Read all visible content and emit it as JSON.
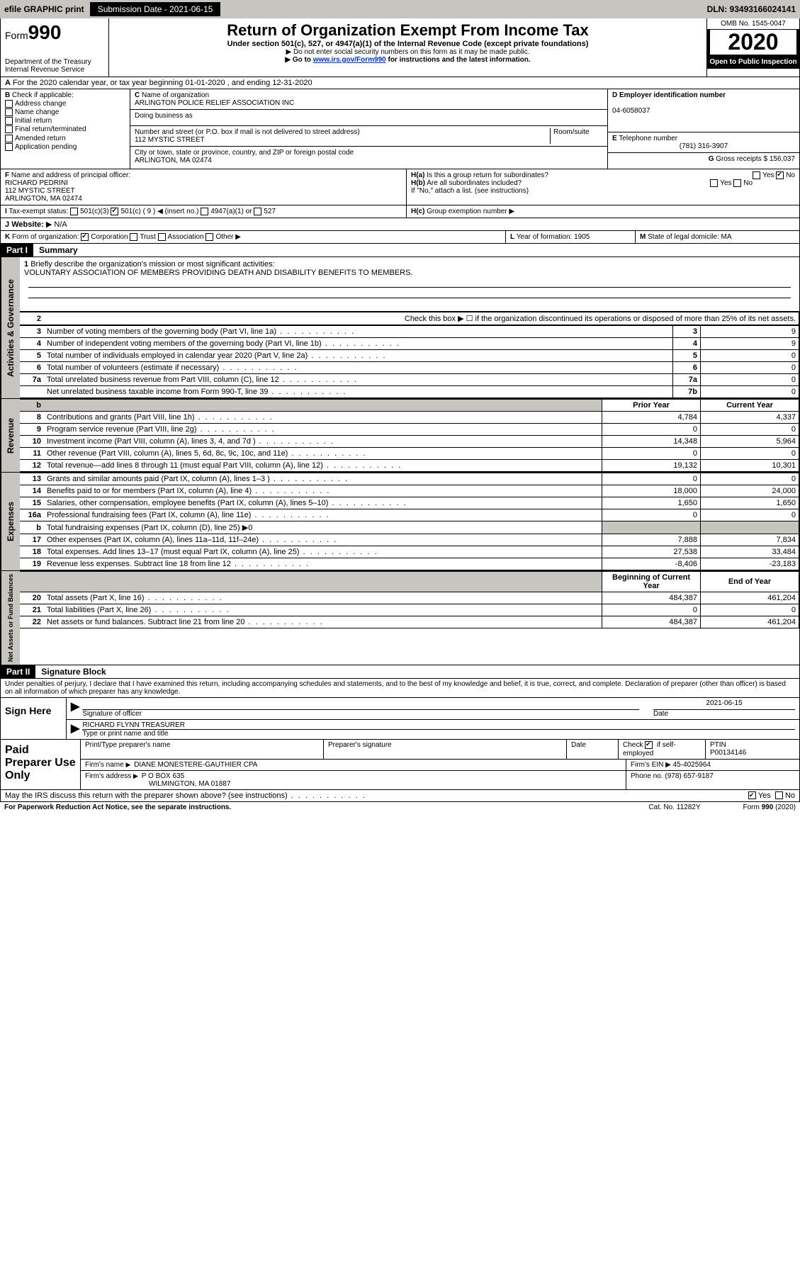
{
  "topbar": {
    "efile": "efile GRAPHIC print",
    "subdate_lbl": "Submission Date - 2021-06-15",
    "dln": "DLN: 93493166024141"
  },
  "header": {
    "form_lbl": "Form",
    "form_num": "990",
    "dept": "Department of the Treasury\nInternal Revenue Service",
    "title": "Return of Organization Exempt From Income Tax",
    "sub1": "Under section 501(c), 527, or 4947(a)(1) of the Internal Revenue Code (except private foundations)",
    "sub2": "Do not enter social security numbers on this form as it may be made public.",
    "sub3_pre": "Go to ",
    "sub3_link": "www.irs.gov/Form990",
    "sub3_post": " for instructions and the latest information.",
    "omb": "OMB No. 1545-0047",
    "year": "2020",
    "open": "Open to Public Inspection"
  },
  "A": {
    "text": "For the 2020 calendar year, or tax year beginning 01-01-2020    , and ending 12-31-2020"
  },
  "B": {
    "lbl": "Check if applicable:",
    "opts": [
      "Address change",
      "Name change",
      "Initial return",
      "Final return/terminated",
      "Amended return",
      "Application pending"
    ]
  },
  "C": {
    "name_lbl": "Name of organization",
    "name": "ARLINGTON POLICE RELIEF ASSOCIATION INC",
    "dba_lbl": "Doing business as",
    "addr_lbl": "Number and street (or P.O. box if mail is not delivered to street address)",
    "room_lbl": "Room/suite",
    "addr": "112 MYSTIC STREET",
    "city_lbl": "City or town, state or province, country, and ZIP or foreign postal code",
    "city": "ARLINGTON, MA  02474"
  },
  "D": {
    "lbl": "Employer identification number",
    "val": "04-6058037"
  },
  "E": {
    "lbl": "Telephone number",
    "val": "(781) 316-3907"
  },
  "G": {
    "lbl": "Gross receipts $",
    "val": "156,037"
  },
  "F": {
    "lbl": "Name and address of principal officer:",
    "name": "RICHARD PEDRINI",
    "addr": "112 MYSTIC STREET\nARLINGTON, MA  02474"
  },
  "H": {
    "a": "Is this a group return for subordinates?",
    "b": "Are all subordinates included?",
    "b_note": "If \"No,\" attach a list. (see instructions)",
    "c": "Group exemption number"
  },
  "I": {
    "lbl": "Tax-exempt status:",
    "opts": [
      "501(c)(3)",
      "501(c) ( 9 ) ◀ (insert no.)",
      "4947(a)(1) or",
      "527"
    ]
  },
  "J": {
    "lbl": "Website:",
    "val": "N/A"
  },
  "K": {
    "lbl": "Form of organization:",
    "opts": [
      "Corporation",
      "Trust",
      "Association",
      "Other"
    ]
  },
  "L": {
    "lbl": "Year of formation:",
    "val": "1905"
  },
  "M": {
    "lbl": "State of legal domicile:",
    "val": "MA"
  },
  "part1": {
    "hdr": "Part I",
    "title": "Summary",
    "mission_lbl": "Briefly describe the organization's mission or most significant activities:",
    "mission": "VOLUNTARY ASSOCIATION OF MEMBERS PROVIDING DEATH AND DISABILITY BENEFITS TO MEMBERS.",
    "line2": "Check this box ▶ ☐ if the organization discontinued its operations or disposed of more than 25% of its net assets.",
    "tabs": {
      "gov": "Activities & Governance",
      "rev": "Revenue",
      "exp": "Expenses",
      "net": "Net Assets or Fund Balances"
    },
    "cols": {
      "prior": "Prior Year",
      "current": "Current Year",
      "beg": "Beginning of Current Year",
      "end": "End of Year"
    },
    "gov_lines": [
      {
        "n": "3",
        "d": "Number of voting members of the governing body (Part VI, line 1a)",
        "box": "3",
        "v": "9"
      },
      {
        "n": "4",
        "d": "Number of independent voting members of the governing body (Part VI, line 1b)",
        "box": "4",
        "v": "9"
      },
      {
        "n": "5",
        "d": "Total number of individuals employed in calendar year 2020 (Part V, line 2a)",
        "box": "5",
        "v": "0"
      },
      {
        "n": "6",
        "d": "Total number of volunteers (estimate if necessary)",
        "box": "6",
        "v": "0"
      },
      {
        "n": "7a",
        "d": "Total unrelated business revenue from Part VIII, column (C), line 12",
        "box": "7a",
        "v": "0"
      },
      {
        "n": "",
        "d": "Net unrelated business taxable income from Form 990-T, line 39",
        "box": "7b",
        "v": "0"
      }
    ],
    "rev_lines": [
      {
        "n": "8",
        "d": "Contributions and grants (Part VIII, line 1h)",
        "p": "4,784",
        "c": "4,337"
      },
      {
        "n": "9",
        "d": "Program service revenue (Part VIII, line 2g)",
        "p": "0",
        "c": "0"
      },
      {
        "n": "10",
        "d": "Investment income (Part VIII, column (A), lines 3, 4, and 7d )",
        "p": "14,348",
        "c": "5,964"
      },
      {
        "n": "11",
        "d": "Other revenue (Part VIII, column (A), lines 5, 6d, 8c, 9c, 10c, and 11e)",
        "p": "0",
        "c": "0"
      },
      {
        "n": "12",
        "d": "Total revenue—add lines 8 through 11 (must equal Part VIII, column (A), line 12)",
        "p": "19,132",
        "c": "10,301"
      }
    ],
    "exp_lines": [
      {
        "n": "13",
        "d": "Grants and similar amounts paid (Part IX, column (A), lines 1–3 )",
        "p": "0",
        "c": "0"
      },
      {
        "n": "14",
        "d": "Benefits paid to or for members (Part IX, column (A), line 4)",
        "p": "18,000",
        "c": "24,000"
      },
      {
        "n": "15",
        "d": "Salaries, other compensation, employee benefits (Part IX, column (A), lines 5–10)",
        "p": "1,650",
        "c": "1,650"
      },
      {
        "n": "16a",
        "d": "Professional fundraising fees (Part IX, column (A), line 11e)",
        "p": "0",
        "c": "0"
      },
      {
        "n": "b",
        "d": "Total fundraising expenses (Part IX, column (D), line 25) ▶0",
        "p": "",
        "c": "",
        "shade": true
      },
      {
        "n": "17",
        "d": "Other expenses (Part IX, column (A), lines 11a–11d, 11f–24e)",
        "p": "7,888",
        "c": "7,834"
      },
      {
        "n": "18",
        "d": "Total expenses. Add lines 13–17 (must equal Part IX, column (A), line 25)",
        "p": "27,538",
        "c": "33,484"
      },
      {
        "n": "19",
        "d": "Revenue less expenses. Subtract line 18 from line 12",
        "p": "-8,406",
        "c": "-23,183"
      }
    ],
    "net_lines": [
      {
        "n": "20",
        "d": "Total assets (Part X, line 16)",
        "p": "484,387",
        "c": "461,204"
      },
      {
        "n": "21",
        "d": "Total liabilities (Part X, line 26)",
        "p": "0",
        "c": "0"
      },
      {
        "n": "22",
        "d": "Net assets or fund balances. Subtract line 21 from line 20",
        "p": "484,387",
        "c": "461,204"
      }
    ]
  },
  "part2": {
    "hdr": "Part II",
    "title": "Signature Block",
    "decl": "Under penalties of perjury, I declare that I have examined this return, including accompanying schedules and statements, and to the best of my knowledge and belief, it is true, correct, and complete. Declaration of preparer (other than officer) is based on all information of which preparer has any knowledge."
  },
  "sign": {
    "lbl": "Sign Here",
    "sig_lbl": "Signature of officer",
    "date": "2021-06-15",
    "date_lbl": "Date",
    "name": "RICHARD FLYNN  TREASURER",
    "name_lbl": "Type or print name and title"
  },
  "paid": {
    "lbl": "Paid Preparer Use Only",
    "h1": "Print/Type preparer's name",
    "h2": "Preparer's signature",
    "h3": "Date",
    "h4_a": "Check",
    "h4_b": "if self-employed",
    "h5": "PTIN",
    "ptin": "P00134146",
    "firm_name_lbl": "Firm's name",
    "firm_name": "DIANE MONESTERE-GAUTHIER CPA",
    "firm_ein_lbl": "Firm's EIN",
    "firm_ein": "45-4025964",
    "firm_addr_lbl": "Firm's address",
    "firm_addr": "P O BOX 635",
    "firm_city": "WILMINGTON, MA  01887",
    "phone_lbl": "Phone no.",
    "phone": "(978) 657-9187"
  },
  "discuss": "May the IRS discuss this return with the preparer shown above? (see instructions)",
  "footer": {
    "l": "For Paperwork Reduction Act Notice, see the separate instructions.",
    "m": "Cat. No. 11282Y",
    "r": "Form 990 (2020)"
  },
  "yes": "Yes",
  "no": "No"
}
